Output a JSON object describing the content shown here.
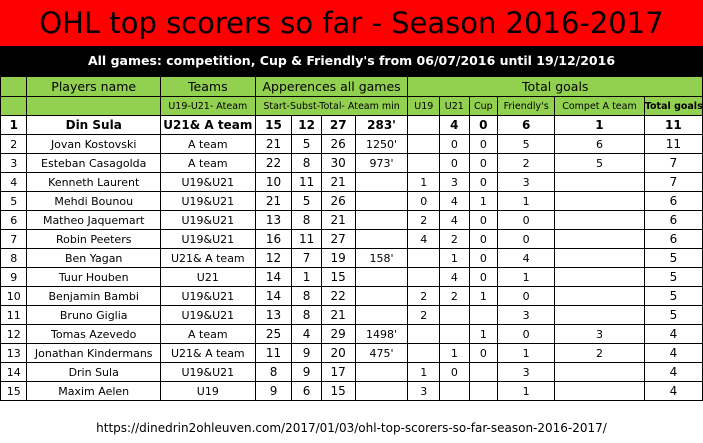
{
  "title": "OHL top scorers so far - Season 2016-2017",
  "subtitle": "All games: competition, Cup & Friendly's from 06/07/2016 until 19/12/2016",
  "header": {
    "players": "Players name",
    "teams": "Teams",
    "apps": "Apperences all games",
    "goals": "Total goals",
    "teams_sub": "U19-U21- Ateam",
    "apps_sub": "Start-Subst-Total- Ateam min",
    "u19": "U19",
    "u21": "U21",
    "cup": "Cup",
    "friendly": "Friendly's",
    "compet": "Compet A team",
    "total": "Total goals"
  },
  "rows": [
    {
      "rank": "1",
      "name": "Din Sula",
      "team": "U21& A team",
      "start": "15",
      "subst": "12",
      "total": "27",
      "mins": "283'",
      "u19": "",
      "u21": "4",
      "cup": "0",
      "friendly": "6",
      "compet": "1",
      "goals": "11"
    },
    {
      "rank": "2",
      "name": "Jovan Kostovski",
      "team": "A team",
      "start": "21",
      "subst": "5",
      "total": "26",
      "mins": "1250'",
      "u19": "",
      "u21": "0",
      "cup": "0",
      "friendly": "5",
      "compet": "6",
      "goals": "11"
    },
    {
      "rank": "3",
      "name": "Esteban Casagolda",
      "team": "A team",
      "start": "22",
      "subst": "8",
      "total": "30",
      "mins": "973'",
      "u19": "",
      "u21": "0",
      "cup": "0",
      "friendly": "2",
      "compet": "5",
      "goals": "7"
    },
    {
      "rank": "4",
      "name": "Kenneth Laurent",
      "team": "U19&U21",
      "start": "10",
      "subst": "11",
      "total": "21",
      "mins": "",
      "u19": "1",
      "u21": "3",
      "cup": "0",
      "friendly": "3",
      "compet": "",
      "goals": "7"
    },
    {
      "rank": "5",
      "name": "Mehdi Bounou",
      "team": "U19&U21",
      "start": "21",
      "subst": "5",
      "total": "26",
      "mins": "",
      "u19": "0",
      "u21": "4",
      "cup": "1",
      "friendly": "1",
      "compet": "",
      "goals": "6"
    },
    {
      "rank": "6",
      "name": "Matheo Jaquemart",
      "team": "U19&U21",
      "start": "13",
      "subst": "8",
      "total": "21",
      "mins": "",
      "u19": "2",
      "u21": "4",
      "cup": "0",
      "friendly": "0",
      "compet": "",
      "goals": "6"
    },
    {
      "rank": "7",
      "name": "Robin Peeters",
      "team": "U19&U21",
      "start": "16",
      "subst": "11",
      "total": "27",
      "mins": "",
      "u19": "4",
      "u21": "2",
      "cup": "0",
      "friendly": "0",
      "compet": "",
      "goals": "6"
    },
    {
      "rank": "8",
      "name": "Ben Yagan",
      "team": "U21& A team",
      "start": "12",
      "subst": "7",
      "total": "19",
      "mins": "158'",
      "u19": "",
      "u21": "1",
      "cup": "0",
      "friendly": "4",
      "compet": "",
      "goals": "5"
    },
    {
      "rank": "9",
      "name": "Tuur Houben",
      "team": "U21",
      "start": "14",
      "subst": "1",
      "total": "15",
      "mins": "",
      "u19": "",
      "u21": "4",
      "cup": "0",
      "friendly": "1",
      "compet": "",
      "goals": "5"
    },
    {
      "rank": "10",
      "name": "Benjamin Bambi",
      "team": "U19&U21",
      "start": "14",
      "subst": "8",
      "total": "22",
      "mins": "",
      "u19": "2",
      "u21": "2",
      "cup": "1",
      "friendly": "0",
      "compet": "",
      "goals": "5"
    },
    {
      "rank": "11",
      "name": "Bruno Giglia",
      "team": "U19&U21",
      "start": "13",
      "subst": "8",
      "total": "21",
      "mins": "",
      "u19": "2",
      "u21": "",
      "cup": "",
      "friendly": "3",
      "compet": "",
      "goals": "5"
    },
    {
      "rank": "12",
      "name": "Tomas Azevedo",
      "team": "A team",
      "start": "25",
      "subst": "4",
      "total": "29",
      "mins": "1498'",
      "u19": "",
      "u21": "",
      "cup": "1",
      "friendly": "0",
      "compet": "3",
      "goals": "4"
    },
    {
      "rank": "13",
      "name": "Jonathan Kindermans",
      "team": "U21& A team",
      "start": "11",
      "subst": "9",
      "total": "20",
      "mins": "475'",
      "u19": "",
      "u21": "1",
      "cup": "0",
      "friendly": "1",
      "compet": "2",
      "goals": "4"
    },
    {
      "rank": "14",
      "name": "Drin Sula",
      "team": "U19&U21",
      "start": "8",
      "subst": "9",
      "total": "17",
      "mins": "",
      "u19": "1",
      "u21": "0",
      "cup": "",
      "friendly": "3",
      "compet": "",
      "goals": "4"
    },
    {
      "rank": "15",
      "name": "Maxim Aelen",
      "team": "U19",
      "start": "9",
      "subst": "6",
      "total": "15",
      "mins": "",
      "u19": "3",
      "u21": "",
      "cup": "",
      "friendly": "1",
      "compet": "",
      "goals": "4"
    }
  ],
  "footer": "https://dinedrin2ohleuven.com/2017/01/03/ohl-top-scorers-so-far-season-2016-2017/",
  "colors": {
    "title_bg": "#ff0000",
    "subtitle_bg": "#000000",
    "header_bg": "#92d050"
  }
}
